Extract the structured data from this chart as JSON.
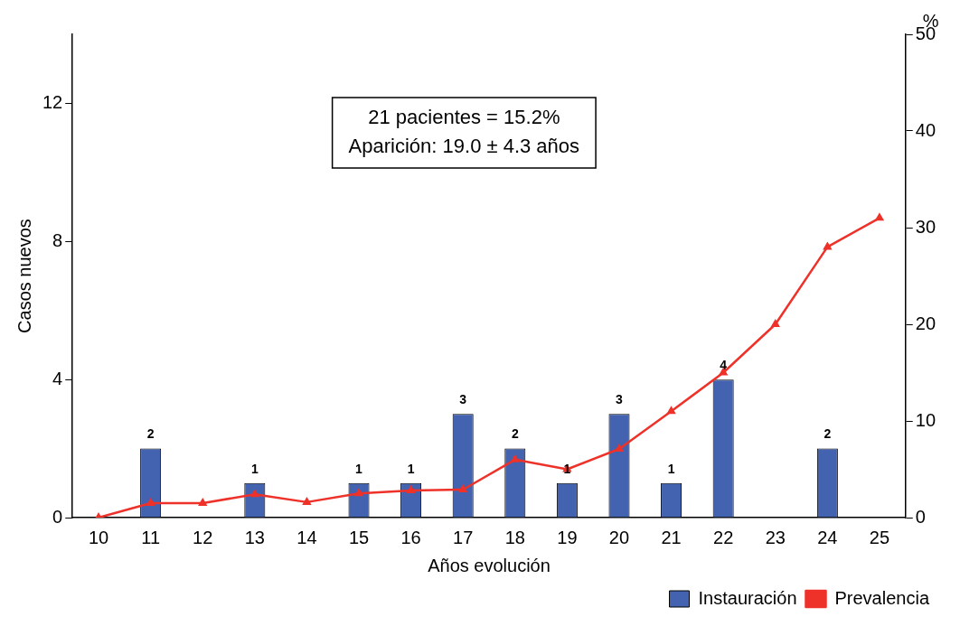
{
  "chart_data": {
    "type": "bar",
    "xlabel": "Años evolución",
    "ylabel": "Casos nuevos",
    "y2label": "%",
    "categories": [
      "10",
      "11",
      "12",
      "13",
      "14",
      "15",
      "16",
      "17",
      "18",
      "19",
      "20",
      "21",
      "22",
      "23",
      "24",
      "25"
    ],
    "series": [
      {
        "name": "Instauración",
        "color": "#4363b0",
        "values": [
          null,
          2,
          null,
          1,
          null,
          1,
          1,
          3,
          2,
          1,
          3,
          1,
          4,
          null,
          2,
          null
        ],
        "value_labels": [
          null,
          "2",
          null,
          "1",
          null,
          "1",
          "1",
          "3",
          "2",
          "1",
          "3",
          "1",
          "4",
          null,
          "2",
          null
        ]
      },
      {
        "name": "Prevalencia",
        "type": "line",
        "axis": "y2",
        "color": "#ee3129",
        "marker": "triangle",
        "values": [
          0,
          1.5,
          1.5,
          2.4,
          1.6,
          2.5,
          2.8,
          2.9,
          6.0,
          5.0,
          7.1,
          11.0,
          15.0,
          20.0,
          28.0,
          31.0
        ]
      }
    ],
    "ylim": [
      0,
      14
    ],
    "yticks": [
      0,
      4,
      8,
      12
    ],
    "y2lim": [
      0,
      50
    ],
    "y2ticks": [
      0,
      10,
      20,
      30,
      40,
      50
    ],
    "grid": false,
    "legend": "bottom right",
    "annotations": [
      "21 pacientes = 15.2%",
      "Aparición: 19.0 ± 4.3 años"
    ]
  }
}
